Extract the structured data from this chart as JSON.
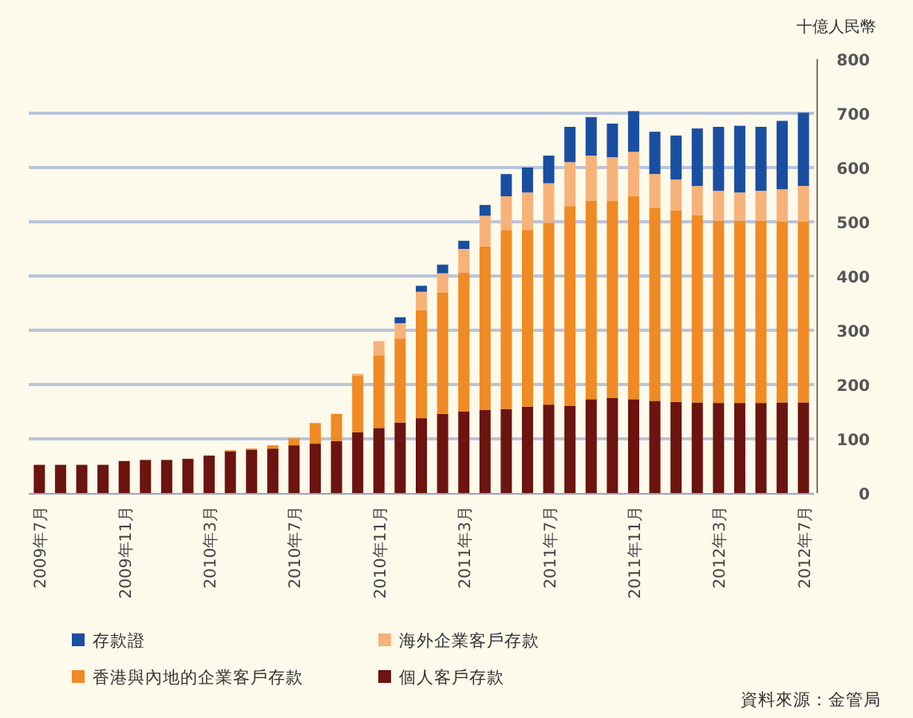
{
  "chart_data": {
    "type": "bar",
    "stacked": true,
    "ylabel": "十億人民幣",
    "categories": [
      "2009年7月",
      null,
      null,
      null,
      "2009年11月",
      null,
      null,
      null,
      "2010年3月",
      null,
      null,
      null,
      "2010年7月",
      null,
      null,
      null,
      "2010年11月",
      null,
      null,
      null,
      "2011年3月",
      null,
      null,
      null,
      "2011年7月",
      null,
      null,
      null,
      "2011年11月",
      null,
      null,
      null,
      "2012年3月",
      null,
      null,
      null,
      "2012年7月"
    ],
    "series": [
      {
        "name": "個人客戶存款",
        "color": "#6b1410",
        "values": [
          52,
          52,
          52,
          52,
          59,
          61,
          61,
          63,
          69,
          77,
          80,
          82,
          88,
          91,
          96,
          112,
          120,
          130,
          138,
          146,
          150,
          153,
          155,
          159,
          163,
          161,
          173,
          175,
          173,
          170,
          168,
          167,
          166,
          166,
          166,
          167,
          167
        ]
      },
      {
        "name": "香港與內地的企業客戶存款",
        "color": "#f08a24",
        "values": [
          0,
          0,
          0,
          0,
          0,
          0,
          0,
          0,
          0,
          2,
          2,
          6,
          13,
          38,
          50,
          104,
          134,
          155,
          199,
          224,
          256,
          302,
          330,
          326,
          335,
          368,
          366,
          364,
          374,
          356,
          353,
          345,
          336,
          336,
          336,
          333,
          333
        ]
      },
      {
        "name": "海外企業客戶存款",
        "color": "#f7b27a",
        "values": [
          0,
          0,
          0,
          0,
          0,
          0,
          0,
          0,
          0,
          0,
          0,
          0,
          0,
          0,
          0,
          4,
          26,
          28,
          34,
          35,
          44,
          56,
          62,
          69,
          73,
          81,
          83,
          80,
          82,
          62,
          57,
          54,
          55,
          52,
          55,
          60,
          66
        ]
      },
      {
        "name": "存款證",
        "color": "#1a4ea0",
        "values": [
          0,
          0,
          0,
          0,
          0,
          0,
          0,
          0,
          0,
          0,
          0,
          0,
          0,
          0,
          0,
          0,
          0,
          11,
          11,
          16,
          15,
          20,
          41,
          46,
          51,
          65,
          71,
          62,
          75,
          78,
          81,
          106,
          118,
          123,
          118,
          126,
          135
        ]
      }
    ],
    "ylim": [
      0,
      800
    ],
    "yticks": [
      0,
      100,
      200,
      300,
      400,
      500,
      600,
      700,
      800
    ],
    "grid": "y",
    "legend": "bottom left",
    "annotations": [
      "資料來源：金管局"
    ]
  }
}
